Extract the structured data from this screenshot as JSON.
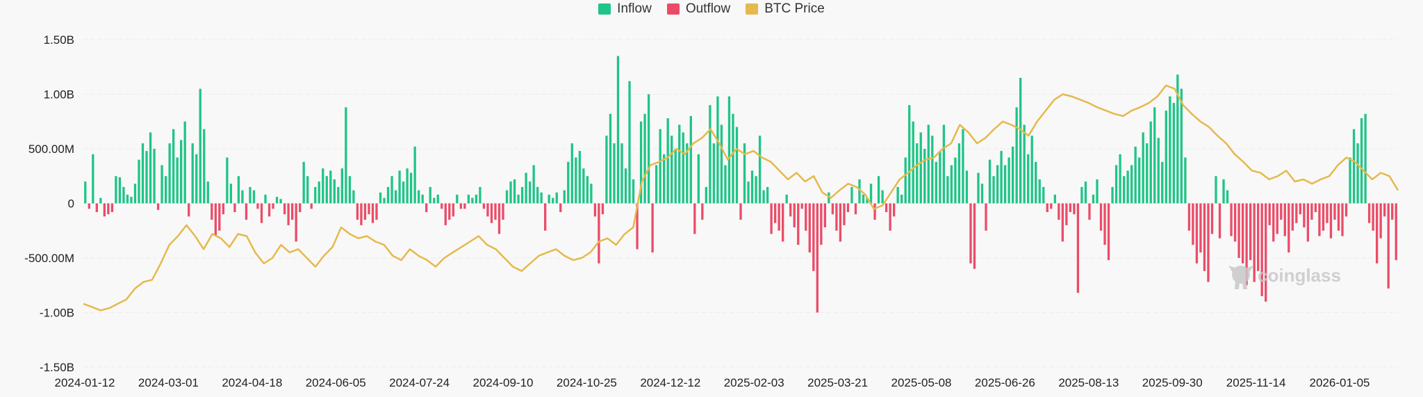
{
  "chart_data": {
    "type": "bar",
    "legend": [
      {
        "name": "Inflow",
        "color": "#1fc487"
      },
      {
        "name": "Outflow",
        "color": "#ea4c68"
      },
      {
        "name": "BTC Price",
        "color": "#e5b94b"
      }
    ],
    "y_axis": {
      "ylim": [
        -1.5,
        1.5
      ],
      "unit": "billion USD",
      "ticks": [
        {
          "value": 1.5,
          "label": "1.50B"
        },
        {
          "value": 1.0,
          "label": "1.00B"
        },
        {
          "value": 0.5,
          "label": "500.00M"
        },
        {
          "value": 0.0,
          "label": "0"
        },
        {
          "value": -0.5,
          "label": "-500.00M"
        },
        {
          "value": -1.0,
          "label": "-1.00B"
        },
        {
          "value": -1.5,
          "label": "-1.50B"
        }
      ]
    },
    "x_tick_labels": [
      "2024-01-12",
      "2024-03-01",
      "2024-04-18",
      "2024-06-05",
      "2024-07-24",
      "2024-09-10",
      "2024-10-25",
      "2024-12-12",
      "2025-02-03",
      "2025-03-21",
      "2025-05-08",
      "2025-06-26",
      "2025-08-13",
      "2025-09-30",
      "2025-11-14",
      "2026-01-05"
    ],
    "flow_bars_billions": [
      0.2,
      -0.05,
      0.45,
      -0.08,
      0.05,
      -0.12,
      -0.1,
      -0.08,
      0.25,
      0.24,
      0.15,
      0.08,
      0.06,
      0.18,
      0.4,
      0.55,
      0.48,
      0.65,
      0.5,
      -0.06,
      0.35,
      0.25,
      0.55,
      0.68,
      0.42,
      0.58,
      0.75,
      -0.12,
      0.55,
      0.45,
      1.05,
      0.68,
      0.2,
      -0.15,
      -0.3,
      -0.25,
      -0.1,
      0.42,
      0.18,
      -0.08,
      0.25,
      0.12,
      -0.15,
      0.15,
      0.12,
      -0.05,
      -0.18,
      0.08,
      -0.12,
      -0.05,
      0.06,
      0.04,
      -0.1,
      -0.2,
      -0.15,
      -0.35,
      -0.08,
      0.38,
      0.25,
      -0.05,
      0.15,
      0.2,
      0.32,
      0.25,
      0.3,
      0.22,
      0.15,
      0.32,
      0.88,
      0.25,
      0.12,
      -0.15,
      -0.2,
      -0.15,
      -0.1,
      -0.18,
      -0.15,
      0.1,
      0.05,
      0.15,
      0.25,
      0.12,
      0.3,
      0.2,
      0.32,
      0.28,
      0.52,
      0.12,
      0.08,
      -0.08,
      0.15,
      0.05,
      0.08,
      -0.05,
      -0.2,
      -0.15,
      -0.12,
      0.08,
      -0.05,
      -0.05,
      0.08,
      0.05,
      0.08,
      0.15,
      -0.05,
      -0.12,
      -0.18,
      -0.15,
      -0.28,
      -0.15,
      0.12,
      0.2,
      0.22,
      0.08,
      0.15,
      0.28,
      0.2,
      0.35,
      0.15,
      0.1,
      -0.25,
      0.08,
      0.05,
      0.1,
      -0.08,
      0.12,
      0.38,
      0.55,
      0.42,
      0.48,
      0.32,
      0.25,
      0.18,
      -0.12,
      -0.55,
      -0.1,
      0.62,
      0.82,
      0.55,
      1.35,
      0.55,
      0.32,
      1.12,
      0.22,
      -0.42,
      0.75,
      0.82,
      1.0,
      -0.45,
      0.35,
      0.68,
      0.45,
      0.78,
      0.62,
      0.5,
      0.72,
      0.65,
      0.55,
      0.8,
      -0.28,
      0.45,
      -0.15,
      0.15,
      0.9,
      0.55,
      0.98,
      0.72,
      0.35,
      0.98,
      0.82,
      0.7,
      -0.15,
      0.55,
      0.2,
      0.3,
      0.25,
      0.62,
      0.12,
      0.15,
      -0.28,
      -0.18,
      -0.25,
      -0.35,
      0.08,
      -0.12,
      -0.22,
      -0.38,
      -0.05,
      -0.25,
      -0.45,
      -0.62,
      -1.0,
      -0.38,
      -0.22,
      0.1,
      -0.1,
      -0.25,
      -0.35,
      -0.2,
      -0.08,
      0.15,
      -0.1,
      0.22,
      0.08,
      0.05,
      0.18,
      -0.15,
      0.25,
      0.12,
      -0.08,
      -0.25,
      -0.12,
      0.15,
      0.08,
      0.42,
      0.9,
      0.75,
      0.55,
      0.65,
      0.5,
      0.72,
      0.62,
      0.38,
      0.48,
      0.72,
      0.25,
      0.35,
      0.42,
      0.55,
      0.68,
      0.3,
      -0.55,
      -0.6,
      0.28,
      0.18,
      -0.25,
      0.4,
      0.25,
      0.35,
      0.48,
      0.35,
      0.42,
      0.52,
      0.88,
      1.15,
      0.72,
      0.45,
      0.62,
      0.38,
      0.22,
      0.15,
      -0.08,
      -0.05,
      0.08,
      -0.15,
      -0.35,
      -0.2,
      -0.08,
      -0.1,
      -0.82,
      0.15,
      0.2,
      -0.15,
      0.08,
      0.22,
      -0.25,
      -0.38,
      -0.52,
      0.15,
      0.35,
      0.45,
      0.25,
      0.3,
      0.35,
      0.52,
      0.42,
      0.65,
      0.55,
      0.75,
      0.88,
      0.6,
      0.38,
      0.85,
      0.98,
      0.92,
      1.18,
      1.05,
      0.42,
      -0.25,
      -0.38,
      -0.55,
      -0.45,
      -0.62,
      -0.72,
      -0.28,
      0.25,
      -0.32,
      0.22,
      0.12,
      -0.3,
      -0.35,
      -0.5,
      -0.55,
      -0.75,
      -0.52,
      -0.72,
      -0.62,
      -0.85,
      -0.9,
      -0.2,
      -0.35,
      -0.28,
      -0.15,
      -0.3,
      -0.45,
      -0.25,
      -0.18,
      -0.1,
      -0.22,
      -0.35,
      -0.15,
      -0.08,
      -0.3,
      -0.25,
      -0.18,
      -0.32,
      -0.15,
      -0.25,
      -0.3,
      -0.12,
      0.42,
      0.68,
      0.55,
      0.78,
      0.82,
      -0.18,
      -0.25,
      -0.55,
      -0.32,
      -0.12,
      -0.78,
      -0.15,
      -0.52
    ],
    "btc_price_curve_axis_units": [
      -0.92,
      -0.95,
      -0.98,
      -0.96,
      -0.92,
      -0.88,
      -0.78,
      -0.72,
      -0.7,
      -0.55,
      -0.38,
      -0.3,
      -0.2,
      -0.3,
      -0.42,
      -0.28,
      -0.32,
      -0.4,
      -0.28,
      -0.3,
      -0.45,
      -0.55,
      -0.5,
      -0.38,
      -0.45,
      -0.42,
      -0.5,
      -0.58,
      -0.48,
      -0.4,
      -0.22,
      -0.28,
      -0.32,
      -0.3,
      -0.35,
      -0.38,
      -0.48,
      -0.52,
      -0.42,
      -0.48,
      -0.52,
      -0.58,
      -0.5,
      -0.45,
      -0.4,
      -0.35,
      -0.3,
      -0.38,
      -0.42,
      -0.5,
      -0.58,
      -0.62,
      -0.55,
      -0.48,
      -0.45,
      -0.42,
      -0.48,
      -0.52,
      -0.5,
      -0.45,
      -0.35,
      -0.32,
      -0.38,
      -0.28,
      -0.22,
      0.2,
      0.35,
      0.38,
      0.42,
      0.5,
      0.45,
      0.55,
      0.6,
      0.68,
      0.55,
      0.4,
      0.5,
      0.45,
      0.48,
      0.42,
      0.38,
      0.3,
      0.22,
      0.28,
      0.2,
      0.25,
      0.1,
      0.05,
      0.12,
      0.18,
      0.15,
      0.08,
      -0.05,
      -0.02,
      0.1,
      0.22,
      0.28,
      0.35,
      0.4,
      0.42,
      0.5,
      0.55,
      0.72,
      0.65,
      0.55,
      0.6,
      0.68,
      0.75,
      0.72,
      0.68,
      0.62,
      0.75,
      0.85,
      0.95,
      1.0,
      0.98,
      0.95,
      0.92,
      0.88,
      0.85,
      0.82,
      0.8,
      0.85,
      0.88,
      0.92,
      0.98,
      1.08,
      1.05,
      0.9,
      0.82,
      0.75,
      0.7,
      0.62,
      0.55,
      0.45,
      0.38,
      0.3,
      0.28,
      0.22,
      0.25,
      0.3,
      0.2,
      0.22,
      0.18,
      0.22,
      0.25,
      0.35,
      0.42,
      0.38,
      0.3,
      0.22,
      0.28,
      0.25,
      0.12
    ]
  }
}
